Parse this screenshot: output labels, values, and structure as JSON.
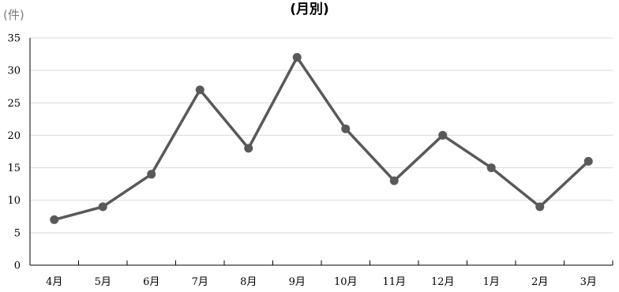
{
  "chart_data": {
    "type": "line",
    "title": "(月別)",
    "unit_label": "(件)",
    "xlabel": "",
    "ylabel": "",
    "categories": [
      "4月",
      "5月",
      "6月",
      "7月",
      "8月",
      "9月",
      "10月",
      "11月",
      "12月",
      "1月",
      "2月",
      "3月"
    ],
    "series": [
      {
        "values": [
          7,
          9,
          14,
          27,
          18,
          32,
          21,
          13,
          20,
          15,
          9,
          16
        ]
      }
    ],
    "ylim": [
      0,
      35
    ],
    "yticks": [
      "0",
      "5",
      "10",
      "15",
      "20",
      "25",
      "30",
      "35"
    ],
    "grid": true,
    "legend": "none",
    "colors": {
      "line": "#595959",
      "marker": "#595959",
      "grid": "#d9d9d9",
      "axis": "#000000"
    }
  }
}
